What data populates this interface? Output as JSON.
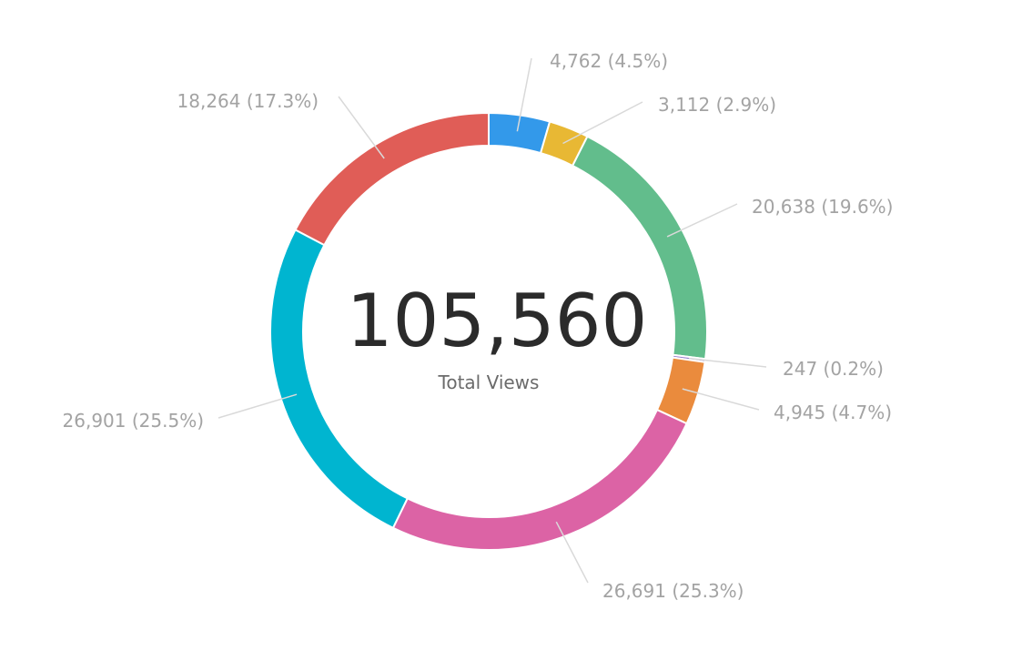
{
  "chart_data": {
    "type": "pie",
    "variant": "donut",
    "center": {
      "value": "105,560",
      "label": "Total Views"
    },
    "slices": [
      {
        "value": 4762,
        "label": "4,762 (4.5%)",
        "color": "#3399ea"
      },
      {
        "value": 3112,
        "label": "3,112 (2.9%)",
        "color": "#e8b834"
      },
      {
        "value": 20638,
        "label": "20,638 (19.6%)",
        "color": "#62bd8c"
      },
      {
        "value": 247,
        "label": "247 (0.2%)",
        "color": "#9b7fd0"
      },
      {
        "value": 4945,
        "label": "4,945 (4.7%)",
        "color": "#ea8b3d"
      },
      {
        "value": 26691,
        "label": "26,691 (25.3%)",
        "color": "#dc63a5"
      },
      {
        "value": 26901,
        "label": "26,901 (25.5%)",
        "color": "#00b5d0"
      },
      {
        "value": 18264,
        "label": "18,264 (17.3%)",
        "color": "#e05d57"
      }
    ]
  }
}
